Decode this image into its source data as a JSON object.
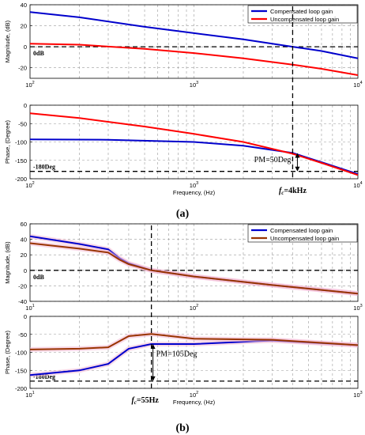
{
  "chart_data": [
    {
      "type": "line",
      "panel": "a-magnitude",
      "ylabel": "Magnitude, (dB)",
      "xscale": "log",
      "xlim": [
        100,
        10000
      ],
      "ylim": [
        -30,
        40
      ],
      "yticks": [
        "40",
        "20",
        "0",
        "-20"
      ],
      "xticks": [
        {
          "base": "10",
          "exp": "2"
        },
        {
          "base": "10",
          "exp": "3"
        },
        {
          "base": "10",
          "exp": "4"
        }
      ],
      "grid": true,
      "legend": "top-right",
      "series": [
        {
          "name": "Compensated loop gain",
          "color": "#0000cc",
          "x": [
            100,
            200,
            500,
            1000,
            2000,
            4000,
            6000,
            10000
          ],
          "y": [
            33,
            28,
            19,
            13,
            7,
            0,
            -4,
            -11
          ]
        },
        {
          "name": "Uncompensated loop gain",
          "color": "#ff0000",
          "x": [
            100,
            200,
            500,
            1000,
            2000,
            4000,
            6000,
            10000
          ],
          "y": [
            3,
            2,
            -2,
            -6,
            -11,
            -17,
            -21,
            -27
          ]
        }
      ],
      "annotations": {
        "zero_db": "0dB"
      }
    },
    {
      "type": "line",
      "panel": "a-phase",
      "ylabel": "Phase, (Degree)",
      "xlabel": "Frequency, (Hz)",
      "xscale": "log",
      "xlim": [
        100,
        10000
      ],
      "ylim": [
        -200,
        0
      ],
      "yticks": [
        "0",
        "-50",
        "-100",
        "-150",
        "-200"
      ],
      "xticks": [
        {
          "base": "10",
          "exp": "2"
        },
        {
          "base": "10",
          "exp": "3"
        },
        {
          "base": "10",
          "exp": "4"
        }
      ],
      "grid": true,
      "series": [
        {
          "name": "Compensated loop gain",
          "color": "#0000cc",
          "x": [
            100,
            300,
            1000,
            2000,
            4000,
            6000,
            10000
          ],
          "y": [
            -93,
            -94,
            -100,
            -110,
            -130,
            -155,
            -187
          ]
        },
        {
          "name": "Uncompensated loop gain",
          "color": "#ff0000",
          "x": [
            100,
            200,
            500,
            1000,
            2000,
            4000,
            6000,
            10000
          ],
          "y": [
            -22,
            -35,
            -58,
            -78,
            -100,
            -132,
            -157,
            -190
          ]
        }
      ],
      "annotations": {
        "ref_line": "-180Deg",
        "pm": "PM=50Deg",
        "fc_prefix": "f",
        "fc_sub": "c",
        "fc_suffix": "=4kHz",
        "fc_hz": 4000
      }
    },
    {
      "type": "line",
      "panel": "b-magnitude",
      "ylabel": "Magnitude, (dB)",
      "xscale": "log",
      "xlim": [
        10,
        1000
      ],
      "ylim": [
        -40,
        60
      ],
      "yticks": [
        "60",
        "40",
        "20",
        "0",
        "-20",
        "-40"
      ],
      "xticks": [
        {
          "base": "10",
          "exp": "1"
        },
        {
          "base": "10",
          "exp": "2"
        },
        {
          "base": "10",
          "exp": "3"
        }
      ],
      "grid": true,
      "legend": "top-right",
      "series": [
        {
          "name": "Compensated loop gain",
          "color": "#0000cc",
          "x": [
            10,
            20,
            30,
            35,
            40,
            55,
            100,
            300,
            1000
          ],
          "y": [
            44,
            34,
            27,
            16,
            9,
            0,
            -8,
            -19,
            -30
          ]
        },
        {
          "name": "Uncompensated loop gain",
          "color": "#993300",
          "x": [
            10,
            20,
            30,
            35,
            40,
            55,
            100,
            300,
            1000
          ],
          "y": [
            35,
            28,
            23,
            14,
            8,
            0,
            -8,
            -19,
            -30
          ]
        }
      ],
      "annotations": {
        "zero_db": "0dB"
      }
    },
    {
      "type": "line",
      "panel": "b-phase",
      "ylabel": "Phase, (Degree)",
      "xlabel": "Frequency, (Hz)",
      "xscale": "log",
      "xlim": [
        10,
        1000
      ],
      "ylim": [
        -200,
        0
      ],
      "yticks": [
        "0",
        "-50",
        "-100",
        "-150",
        "-200"
      ],
      "xticks": [
        {
          "base": "10",
          "exp": "1"
        },
        {
          "base": "10",
          "exp": "2"
        },
        {
          "base": "10",
          "exp": "3"
        }
      ],
      "grid": true,
      "series": [
        {
          "name": "Compensated loop gain",
          "color": "#0000cc",
          "x": [
            10,
            20,
            30,
            40,
            55,
            100,
            300,
            1000
          ],
          "y": [
            -163,
            -150,
            -132,
            -90,
            -77,
            -77,
            -67,
            -80
          ]
        },
        {
          "name": "Uncompensated loop gain",
          "color": "#993300",
          "x": [
            10,
            20,
            30,
            40,
            55,
            100,
            300,
            1000
          ],
          "y": [
            -92,
            -90,
            -86,
            -55,
            -49,
            -62,
            -65,
            -80
          ]
        }
      ],
      "annotations": {
        "ref_line": "-180Deg",
        "pm": "PM=105Deg",
        "fc_prefix": "f",
        "fc_sub": "c",
        "fc_suffix": "=55Hz",
        "fc_hz": 55
      }
    }
  ],
  "captions": {
    "a": "(a)",
    "b": "(b)"
  }
}
